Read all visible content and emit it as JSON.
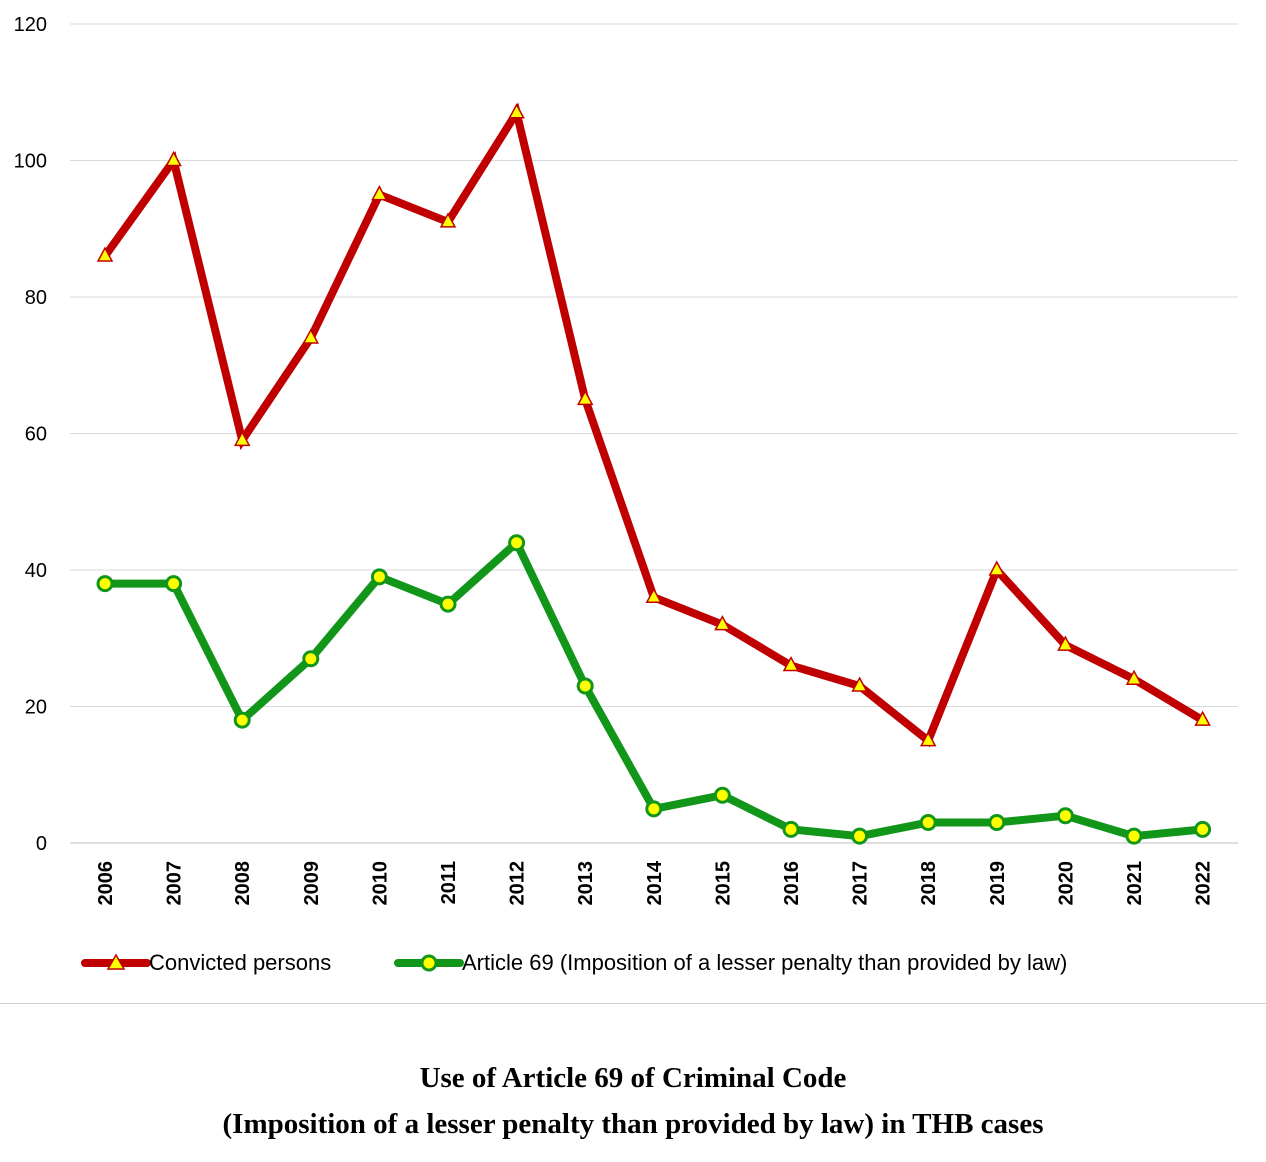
{
  "caption": {
    "line1": "Use of Article 69 of Criminal Code",
    "line2": "(Imposition of a lesser penalty than provided by law) in THB cases"
  },
  "chart_data": {
    "type": "line",
    "categories": [
      "2006",
      "2007",
      "2008",
      "2009",
      "2010",
      "2011",
      "2012",
      "2013",
      "2014",
      "2015",
      "2016",
      "2017",
      "2018",
      "2019",
      "2020",
      "2021",
      "2022"
    ],
    "ylim": [
      0,
      120
    ],
    "yticks": [
      "0",
      "20",
      "40",
      "60",
      "80",
      "100",
      "120"
    ],
    "grid": true,
    "legend_position": "bottom",
    "xlabel": "",
    "ylabel": "",
    "series": [
      {
        "name": "Convicted persons",
        "values": [
          86,
          100,
          59,
          74,
          95,
          91,
          107,
          65,
          36,
          32,
          26,
          23,
          15,
          40,
          29,
          24,
          18
        ],
        "line_color": "#c00000",
        "marker": "triangle",
        "marker_fill": "#ffff00"
      },
      {
        "name": "Article 69 (Imposition of a lesser penalty than provided by law)",
        "values": [
          38,
          38,
          18,
          27,
          39,
          35,
          44,
          23,
          5,
          7,
          2,
          1,
          3,
          3,
          4,
          1,
          2
        ],
        "line_color": "#11961a",
        "marker": "circle",
        "marker_fill": "#ffff00"
      }
    ]
  }
}
